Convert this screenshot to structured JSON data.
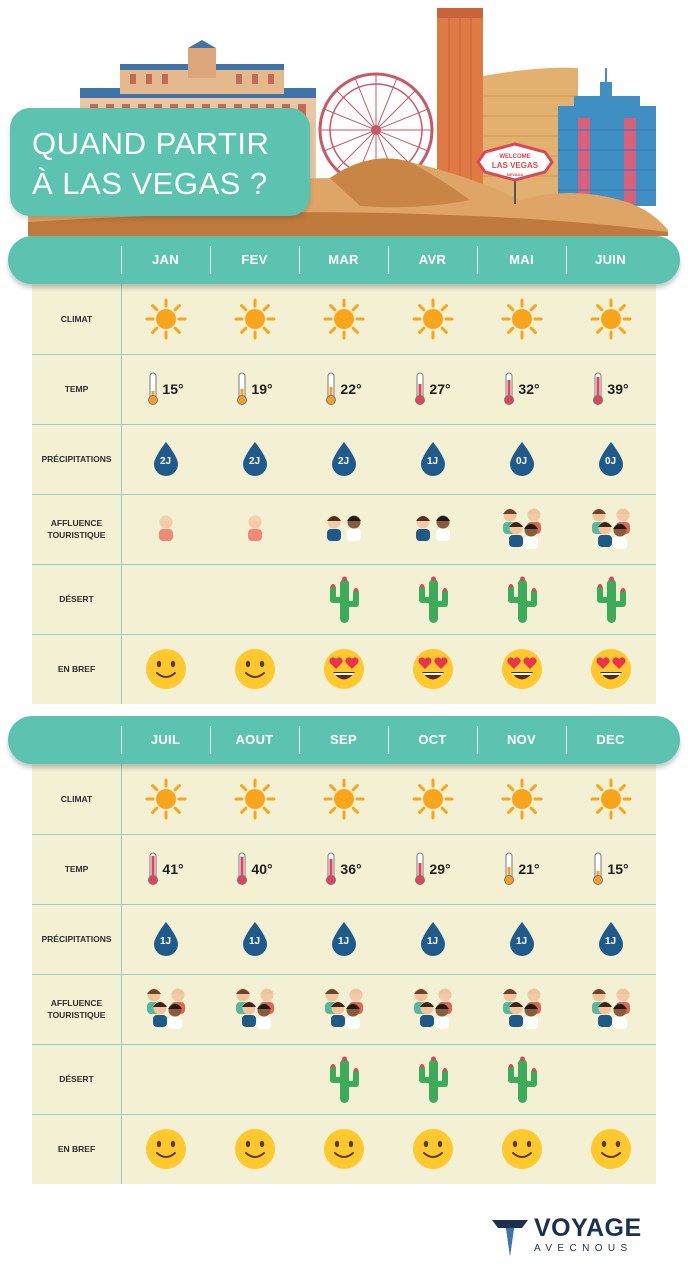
{
  "title": {
    "line1": "QUAND PARTIR",
    "line2": "À LAS VEGAS ?"
  },
  "sign": {
    "line1": "WELCOME",
    "line2": "LAS VEGAS",
    "line3": "NEVADA"
  },
  "row_labels": {
    "climate": "CLIMAT",
    "temp": "TEMP",
    "precip": "PRÉCIPITATIONS",
    "crowd_line1": "AFFLUENCE",
    "crowd_line2": "TOURISTIQUE",
    "desert": "DÉSERT",
    "summary": "EN BREF"
  },
  "tables": [
    {
      "months": [
        {
          "name": "JAN",
          "temp": "15°",
          "temp_level": 0.2,
          "precip": "2J",
          "crowd": 1,
          "desert": false,
          "summary": "smile"
        },
        {
          "name": "FEV",
          "temp": "19°",
          "temp_level": 0.3,
          "precip": "2J",
          "crowd": 1,
          "desert": false,
          "summary": "smile"
        },
        {
          "name": "MAR",
          "temp": "22°",
          "temp_level": 0.4,
          "precip": "2J",
          "crowd": 2,
          "desert": true,
          "summary": "heart-eyes"
        },
        {
          "name": "AVR",
          "temp": "27°",
          "temp_level": 0.55,
          "precip": "1J",
          "crowd": 2,
          "desert": true,
          "summary": "heart-eyes"
        },
        {
          "name": "MAI",
          "temp": "32°",
          "temp_level": 0.75,
          "precip": "0J",
          "crowd": 4,
          "desert": true,
          "summary": "heart-eyes"
        },
        {
          "name": "JUIN",
          "temp": "39°",
          "temp_level": 0.9,
          "precip": "0J",
          "crowd": 4,
          "desert": true,
          "summary": "heart-eyes"
        }
      ]
    },
    {
      "months": [
        {
          "name": "JUIL",
          "temp": "41°",
          "temp_level": 0.95,
          "precip": "1J",
          "crowd": 4,
          "desert": false,
          "summary": "smile"
        },
        {
          "name": "AOUT",
          "temp": "40°",
          "temp_level": 0.92,
          "precip": "1J",
          "crowd": 4,
          "desert": false,
          "summary": "smile"
        },
        {
          "name": "SEP",
          "temp": "36°",
          "temp_level": 0.8,
          "precip": "1J",
          "crowd": 4,
          "desert": true,
          "summary": "smile"
        },
        {
          "name": "OCT",
          "temp": "29°",
          "temp_level": 0.6,
          "precip": "1J",
          "crowd": 4,
          "desert": true,
          "summary": "smile"
        },
        {
          "name": "NOV",
          "temp": "21°",
          "temp_level": 0.4,
          "precip": "1J",
          "crowd": 4,
          "desert": true,
          "summary": "smile"
        },
        {
          "name": "DEC",
          "temp": "15°",
          "temp_level": 0.2,
          "precip": "1J",
          "crowd": 4,
          "desert": false,
          "summary": "smile"
        }
      ]
    }
  ],
  "icons": {
    "climate": "sun-icon",
    "temp": "thermometer-icon",
    "precip": "water-drop-icon",
    "crowd": "tourist-group-icon",
    "desert": "cactus-icon",
    "summary_smile": "smiling-face-icon",
    "summary_heart": "heart-eyes-face-icon"
  },
  "colors": {
    "teal": "#5bc3b0",
    "table_bg": "#f4f0d4",
    "sun": "#f9a51b",
    "drop": "#1e5a8c",
    "cactus": "#3dac5a",
    "emoji": "#ffc82c",
    "thermo_hot": "#e0445a",
    "thermo_cool": "#f0a02a"
  },
  "logo": {
    "main": "VOYAGE",
    "sub": "AVECNOUS"
  }
}
